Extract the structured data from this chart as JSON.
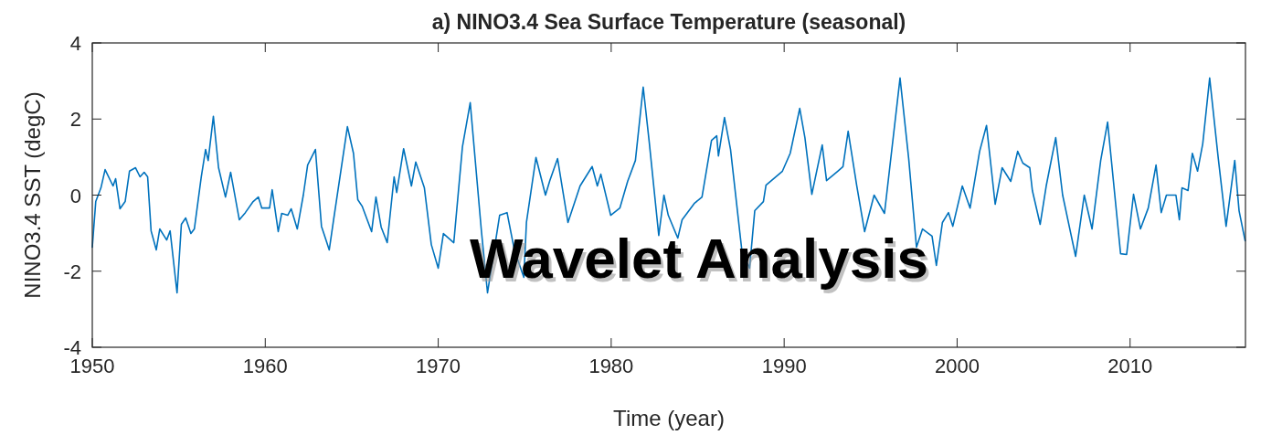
{
  "chart_data": {
    "type": "line",
    "title": "a) NINO3.4 Sea Surface Temperature (seasonal)",
    "xlabel": "Time (year)",
    "ylabel": "NINO3.4 SST (degC)",
    "annotations": [
      "Wavelet Analysis"
    ],
    "xlim": [
      1950,
      2016.67
    ],
    "xticks": [
      1950,
      1960,
      1970,
      1980,
      1990,
      2000,
      2010
    ],
    "ylim": [
      -4,
      4
    ],
    "yticks": [
      -4,
      -2,
      0,
      2,
      4
    ],
    "grid": false,
    "marker": "none",
    "line_style": "solid",
    "series": [
      {
        "color": "#0072bd",
        "x": [
          1950.0,
          1950.2,
          1950.5,
          1950.74,
          1951.2,
          1951.35,
          1951.6,
          1951.9,
          1952.15,
          1952.5,
          1952.76,
          1953.0,
          1953.2,
          1953.4,
          1953.7,
          1953.9,
          1954.3,
          1954.5,
          1954.9,
          1955.15,
          1955.4,
          1955.7,
          1955.9,
          1956.3,
          1956.55,
          1956.7,
          1957.0,
          1957.3,
          1957.7,
          1958.0,
          1958.5,
          1958.85,
          1959.3,
          1959.6,
          1959.8,
          1960.25,
          1960.4,
          1960.75,
          1960.95,
          1961.3,
          1961.5,
          1961.85,
          1962.2,
          1962.45,
          1962.9,
          1963.25,
          1963.7,
          1963.95,
          1964.75,
          1965.1,
          1965.35,
          1965.6,
          1966.15,
          1966.4,
          1966.7,
          1967.05,
          1967.45,
          1967.6,
          1968.0,
          1968.45,
          1968.7,
          1969.2,
          1969.6,
          1970.0,
          1970.3,
          1970.9,
          1971.4,
          1971.85,
          1972.5,
          1972.85,
          1973.55,
          1973.98,
          1974.4,
          1974.95,
          1975.1,
          1975.65,
          1976.2,
          1976.45,
          1976.9,
          1977.5,
          1978.2,
          1978.9,
          1979.2,
          1979.4,
          1979.97,
          1980.5,
          1980.95,
          1981.4,
          1981.85,
          1982.2,
          1982.75,
          1983.05,
          1983.3,
          1983.85,
          1984.1,
          1984.8,
          1985.25,
          1985.8,
          1986.1,
          1986.2,
          1986.55,
          1986.9,
          1987.55,
          1988.0,
          1988.3,
          1988.8,
          1988.95,
          1989.9,
          1990.35,
          1990.9,
          1991.2,
          1991.6,
          1992.2,
          1992.45,
          1993.1,
          1993.4,
          1993.7,
          1994.2,
          1994.65,
          1995.2,
          1995.8,
          1996.7,
          1997.2,
          1997.65,
          1998.0,
          1998.55,
          1998.8,
          1999.15,
          1999.5,
          1999.75,
          2000.3,
          2000.75,
          2001.3,
          2001.7,
          2002.2,
          2002.6,
          2003.1,
          2003.5,
          2003.8,
          2004.2,
          2004.35,
          2004.8,
          2005.15,
          2005.7,
          2006.1,
          2006.85,
          2007.35,
          2007.8,
          2008.3,
          2008.7,
          2009.45,
          2009.8,
          2010.2,
          2010.6,
          2011.05,
          2011.5,
          2011.8,
          2012.1,
          2012.65,
          2012.85,
          2013.0,
          2013.35,
          2013.6,
          2013.9,
          2014.2,
          2014.6,
          2015.1,
          2015.55,
          2016.05,
          2016.3,
          2016.65
        ],
        "values": [
          -1.37,
          -0.17,
          0.19,
          0.67,
          0.24,
          0.43,
          -0.36,
          -0.17,
          0.63,
          0.72,
          0.48,
          0.6,
          0.48,
          -0.94,
          -1.44,
          -0.89,
          -1.18,
          -0.94,
          -2.57,
          -0.77,
          -0.6,
          -1.01,
          -0.89,
          0.48,
          1.2,
          0.91,
          2.07,
          0.72,
          -0.05,
          0.6,
          -0.65,
          -0.46,
          -0.17,
          -0.05,
          -0.34,
          -0.34,
          0.14,
          -0.96,
          -0.48,
          -0.53,
          -0.36,
          -0.89,
          0.0,
          0.79,
          1.2,
          -0.82,
          -1.44,
          -0.65,
          1.8,
          1.1,
          -0.12,
          -0.29,
          -0.96,
          -0.05,
          -0.84,
          -1.25,
          0.48,
          0.07,
          1.22,
          0.24,
          0.87,
          0.19,
          -1.3,
          -1.92,
          -1.01,
          -1.25,
          1.27,
          2.43,
          -0.96,
          -2.57,
          -0.53,
          -0.46,
          -1.44,
          -2.16,
          -0.72,
          0.99,
          0.0,
          0.38,
          0.96,
          -0.72,
          0.24,
          0.75,
          0.24,
          0.55,
          -0.53,
          -0.34,
          0.36,
          0.91,
          2.84,
          1.39,
          -1.06,
          0.0,
          -0.53,
          -1.13,
          -0.65,
          -0.22,
          -0.05,
          1.44,
          1.56,
          1.03,
          2.04,
          1.2,
          -1.44,
          -1.92,
          -0.41,
          -0.17,
          0.26,
          0.63,
          1.1,
          2.28,
          1.51,
          0.02,
          1.32,
          0.38,
          0.63,
          0.75,
          1.68,
          0.24,
          -0.96,
          0.0,
          -0.48,
          3.08,
          0.96,
          -1.37,
          -0.89,
          -1.08,
          -1.85,
          -0.72,
          -0.46,
          -0.82,
          0.24,
          -0.34,
          1.15,
          1.83,
          -0.24,
          0.72,
          0.36,
          1.15,
          0.84,
          0.72,
          0.12,
          -0.77,
          0.24,
          1.51,
          0.0,
          -1.61,
          0.0,
          -0.89,
          0.91,
          1.92,
          -1.54,
          -1.56,
          0.02,
          -0.89,
          -0.34,
          0.79,
          -0.46,
          0.0,
          0.0,
          -0.65,
          0.19,
          0.12,
          1.1,
          0.63,
          1.35,
          3.08,
          0.96,
          -0.82,
          0.91,
          -0.41,
          -1.2
        ]
      }
    ]
  }
}
